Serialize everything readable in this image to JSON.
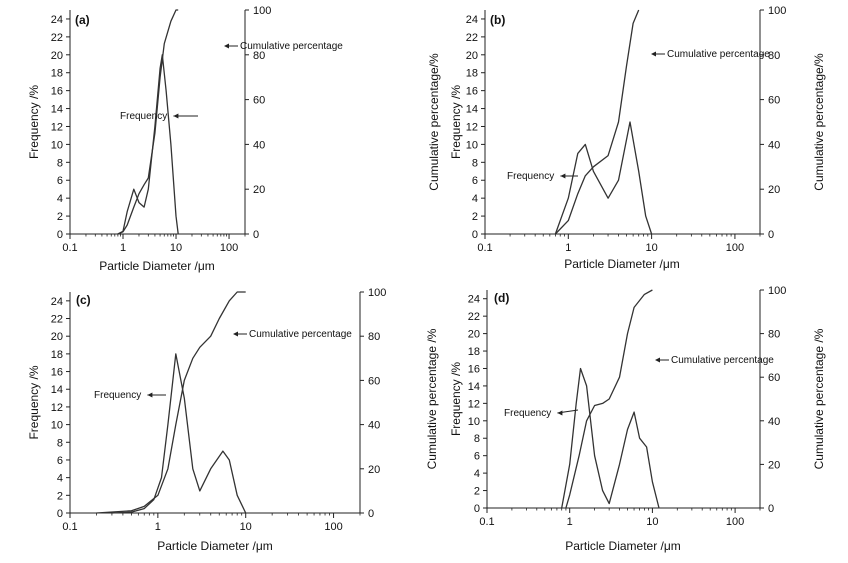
{
  "chart_data": [
    {
      "type": "line",
      "panel_label": "(a)",
      "xlabel": "Particle Diameter /μm",
      "ylabel_left": "Frequency /%",
      "ylabel_right": "",
      "x_scale": "log",
      "xlim": [
        0.1,
        200
      ],
      "x_ticks": [
        "0.1",
        "1",
        "10",
        "100"
      ],
      "ylim_left": [
        0,
        25
      ],
      "y_ticks_left": [
        "0",
        "2",
        "4",
        "6",
        "8",
        "10",
        "12",
        "14",
        "16",
        "18",
        "20",
        "22",
        "24"
      ],
      "ylim_right": [
        0,
        100
      ],
      "y_ticks_right": [
        "0",
        "20",
        "40",
        "60",
        "80",
        "100"
      ],
      "series": [
        {
          "name": "Frequency",
          "axis": "left",
          "x": [
            0.8,
            1.0,
            1.2,
            1.6,
            2.0,
            2.5,
            3.0,
            4.0,
            5.0,
            5.5,
            6.5,
            8.0,
            10.0,
            11.0
          ],
          "y": [
            0,
            0.3,
            2.5,
            5.0,
            3.5,
            3.0,
            5.0,
            12.0,
            18.5,
            20.0,
            16.0,
            10.0,
            2.0,
            0
          ]
        },
        {
          "name": "Cumulative percentage",
          "axis": "right",
          "x": [
            0.8,
            1.0,
            1.2,
            1.6,
            2.0,
            2.5,
            3.0,
            4.0,
            5.0,
            6.0,
            8.0,
            10.0,
            11.0
          ],
          "y": [
            0,
            1,
            4,
            12,
            18,
            22,
            25,
            45,
            70,
            85,
            95,
            100,
            100
          ]
        }
      ],
      "annotations": [
        {
          "text": "Frequency",
          "series": "Frequency"
        },
        {
          "text": "Cumulative percentage",
          "series": "Cumulative percentage"
        }
      ]
    },
    {
      "type": "line",
      "panel_label": "(b)",
      "xlabel": "Particle Diameter /μm",
      "ylabel_left": "Frequency /%",
      "ylabel_right": "Cumulative percentage/%",
      "ylabel_outer": "Cumulative percentage/%",
      "x_scale": "log",
      "xlim": [
        0.1,
        200
      ],
      "x_ticks": [
        "0.1",
        "1",
        "10",
        "100"
      ],
      "ylim_left": [
        0,
        25
      ],
      "y_ticks_left": [
        "0",
        "2",
        "4",
        "6",
        "8",
        "10",
        "12",
        "14",
        "16",
        "18",
        "20",
        "22",
        "24"
      ],
      "ylim_right": [
        0,
        100
      ],
      "y_ticks_right": [
        "0",
        "20",
        "40",
        "60",
        "80",
        "100"
      ],
      "series": [
        {
          "name": "Frequency",
          "axis": "left",
          "x": [
            0.7,
            1.0,
            1.3,
            1.6,
            2.0,
            3.0,
            4.0,
            5.5,
            7.0,
            8.5,
            10.0
          ],
          "y": [
            0,
            4,
            9,
            10,
            7,
            4,
            6,
            12.5,
            7,
            2,
            0
          ]
        },
        {
          "name": "Cumulative percentage",
          "axis": "right",
          "x": [
            0.7,
            1.0,
            1.3,
            1.6,
            2.0,
            3.0,
            4.0,
            5.0,
            6.0,
            7.0
          ],
          "y": [
            0,
            6,
            18,
            26,
            30,
            35,
            50,
            75,
            94,
            100
          ]
        }
      ],
      "annotations": [
        {
          "text": "Frequency",
          "series": "Frequency"
        },
        {
          "text": "Cumulative percentage",
          "series": "Cumulative percentage"
        }
      ]
    },
    {
      "type": "line",
      "panel_label": "(c)",
      "xlabel": "Particle Diameter /μm",
      "ylabel_left": "Frequency /%",
      "ylabel_right": "",
      "x_scale": "log",
      "xlim": [
        0.1,
        200
      ],
      "x_ticks": [
        "0.1",
        "1",
        "10",
        "100"
      ],
      "ylim_left": [
        0,
        25
      ],
      "y_ticks_left": [
        "0",
        "2",
        "4",
        "6",
        "8",
        "10",
        "12",
        "14",
        "16",
        "18",
        "20",
        "22",
        "24"
      ],
      "ylim_right": [
        0,
        100
      ],
      "y_ticks_right": [
        "0",
        "20",
        "40",
        "60",
        "80",
        "100"
      ],
      "series": [
        {
          "name": "Frequency",
          "axis": "left",
          "x": [
            0.3,
            0.5,
            0.7,
            0.9,
            1.1,
            1.3,
            1.6,
            2.0,
            2.5,
            3.0,
            4.0,
            5.5,
            6.5,
            8.0,
            10.0
          ],
          "y": [
            0,
            0.1,
            0.5,
            1.5,
            4,
            10,
            18,
            13,
            5,
            2.5,
            5,
            7,
            6,
            2,
            0
          ]
        },
        {
          "name": "Cumulative percentage",
          "axis": "right",
          "x": [
            0.2,
            0.5,
            0.7,
            1.0,
            1.3,
            1.6,
            2.0,
            2.5,
            3.0,
            4.0,
            5.0,
            6.5,
            8.0,
            10.0
          ],
          "y": [
            0,
            1,
            3,
            8,
            20,
            40,
            60,
            70,
            75,
            80,
            88,
            96,
            100,
            100
          ]
        }
      ],
      "annotations": [
        {
          "text": "Frequency",
          "series": "Frequency"
        },
        {
          "text": "Cumulative percentage",
          "series": "Cumulative percentage"
        }
      ]
    },
    {
      "type": "line",
      "panel_label": "(d)",
      "xlabel": "Particle Diameter /μm",
      "ylabel_left": "Frequency /%",
      "ylabel_right": "Cumulative percentage /%",
      "ylabel_outer": "Cumulative percentage /%",
      "x_scale": "log",
      "xlim": [
        0.1,
        200
      ],
      "x_ticks": [
        "0.1",
        "1",
        "10",
        "100"
      ],
      "ylim_left": [
        0,
        25
      ],
      "y_ticks_left": [
        "0",
        "2",
        "4",
        "6",
        "8",
        "10",
        "12",
        "14",
        "16",
        "18",
        "20",
        "22",
        "24"
      ],
      "ylim_right": [
        0,
        100
      ],
      "y_ticks_right": [
        "0",
        "20",
        "40",
        "60",
        "80",
        "100"
      ],
      "series": [
        {
          "name": "Frequency",
          "axis": "left",
          "x": [
            0.8,
            1.0,
            1.2,
            1.35,
            1.6,
            2.0,
            2.5,
            3.0,
            4.0,
            5.0,
            6.0,
            7.0,
            8.5,
            10.0,
            12.0
          ],
          "y": [
            0,
            5,
            12,
            16,
            14,
            6,
            2,
            0.5,
            5,
            9,
            11,
            8,
            7,
            3,
            0
          ]
        },
        {
          "name": "Cumulative percentage",
          "axis": "right",
          "x": [
            0.9,
            1.0,
            1.3,
            1.6,
            2.0,
            2.5,
            3.0,
            4.0,
            5.0,
            6.0,
            8.0,
            10.0
          ],
          "y": [
            0,
            6,
            24,
            40,
            47,
            48,
            50,
            60,
            80,
            92,
            98,
            100
          ]
        }
      ],
      "annotations": [
        {
          "text": "Frequency",
          "series": "Frequency"
        },
        {
          "text": "Cumulative percentage",
          "series": "Cumulative percentage"
        }
      ]
    }
  ]
}
